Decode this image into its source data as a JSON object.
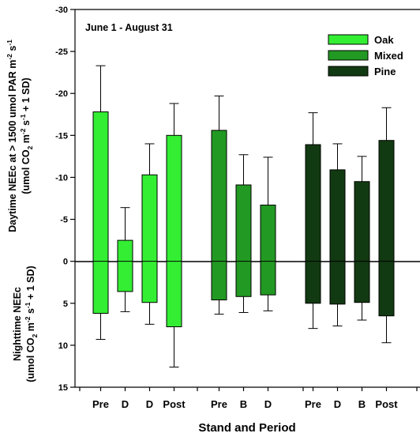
{
  "chart_data": {
    "type": "bar",
    "annotation": "June 1 - August 31",
    "xlabel": "Stand and Period",
    "ylabel_top": {
      "line1": [
        "Daytime NEEc at > 1500 umol PAR m",
        "-2",
        " s",
        "-1"
      ],
      "line2": [
        "(umol CO",
        "2",
        " m",
        "-2",
        " s",
        "-1",
        " + 1 SD)"
      ]
    },
    "ylabel_bottom": {
      "line1": [
        "Nighttime NEEc"
      ],
      "line2": [
        "(umol CO",
        "2",
        " m",
        "-2",
        " s",
        "-1",
        " + 1 SD)"
      ]
    },
    "ylim": [
      15,
      -30
    ],
    "yticks": [
      -30,
      -25,
      -20,
      -15,
      -10,
      -5,
      0,
      5,
      10,
      15
    ],
    "ytick_labels": [
      "-30",
      "-25",
      "-20",
      "-15",
      "-10",
      "-5",
      "0",
      "5",
      "10",
      "15"
    ],
    "legend": [
      {
        "name": "Oak",
        "color": "#33ee33"
      },
      {
        "name": "Mixed",
        "color": "#229922"
      },
      {
        "name": "Pine",
        "color": "#123a12"
      }
    ],
    "legend_position": "top-right",
    "groups": [
      {
        "series": "Oak",
        "color": "#33ee33",
        "bars": [
          {
            "label": "Pre",
            "day": -17.8,
            "day_err": -23.3,
            "night": 6.2,
            "night_err": 9.3
          },
          {
            "label": "D",
            "day": -2.5,
            "day_err": -6.4,
            "night": 3.6,
            "night_err": 6.0
          },
          {
            "label": "D",
            "day": -10.3,
            "day_err": -14.0,
            "night": 4.9,
            "night_err": 7.5
          },
          {
            "label": "Post",
            "day": -15.0,
            "day_err": -18.8,
            "night": 7.8,
            "night_err": 12.6
          }
        ]
      },
      {
        "series": "Mixed",
        "color": "#229922",
        "bars": [
          {
            "label": "Pre",
            "day": -15.6,
            "day_err": -19.7,
            "night": 4.6,
            "night_err": 6.3
          },
          {
            "label": "B",
            "day": -9.1,
            "day_err": -12.7,
            "night": 4.2,
            "night_err": 6.1
          },
          {
            "label": "D",
            "day": -6.7,
            "day_err": -12.4,
            "night": 4.0,
            "night_err": 5.9
          }
        ]
      },
      {
        "series": "Pine",
        "color": "#123a12",
        "bars": [
          {
            "label": "Pre",
            "day": -13.9,
            "day_err": -17.7,
            "night": 5.0,
            "night_err": 8.0
          },
          {
            "label": "D",
            "day": -10.9,
            "day_err": -14.0,
            "night": 5.1,
            "night_err": 7.7
          },
          {
            "label": "B",
            "day": -9.5,
            "day_err": -12.5,
            "night": 4.9,
            "night_err": 7.0
          },
          {
            "label": "Post",
            "day": -14.4,
            "day_err": -18.3,
            "night": 6.5,
            "night_err": 9.7
          }
        ]
      }
    ]
  }
}
